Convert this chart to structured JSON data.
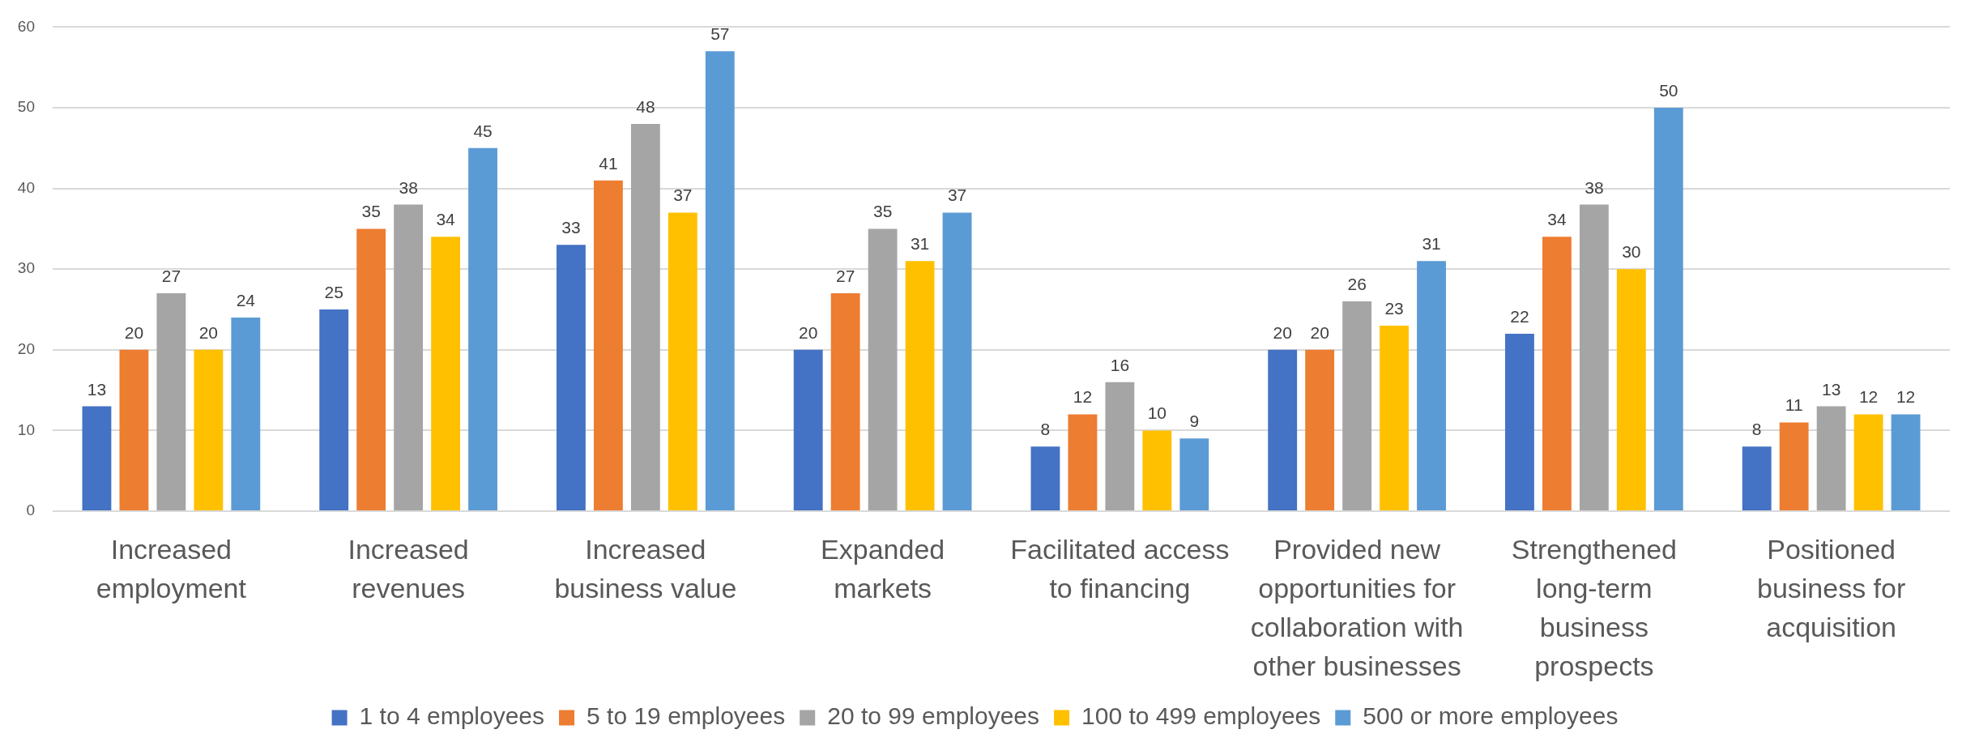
{
  "chart_data": {
    "type": "bar",
    "categories": [
      "Increased employment",
      "Increased revenues",
      "Increased business value",
      "Expanded markets",
      "Facilitated access to financing",
      "Provided new opportunities for collaboration with other businesses",
      "Strengthened long-term business prospects",
      "Positioned business for acquisition"
    ],
    "series": [
      {
        "name": "1 to 4 employees",
        "color": "#4472c4",
        "values": [
          13,
          25,
          33,
          20,
          8,
          20,
          22,
          8
        ]
      },
      {
        "name": "5 to 19 employees",
        "color": "#ed7d31",
        "values": [
          20,
          35,
          41,
          27,
          12,
          20,
          34,
          11
        ]
      },
      {
        "name": "20 to 99 employees",
        "color": "#a5a5a5",
        "values": [
          27,
          38,
          48,
          35,
          16,
          26,
          38,
          13
        ]
      },
      {
        "name": "100 to 499 employees",
        "color": "#ffc000",
        "values": [
          20,
          34,
          37,
          31,
          10,
          23,
          30,
          12
        ]
      },
      {
        "name": "500 or more employees",
        "color": "#5b9bd5",
        "values": [
          24,
          45,
          57,
          37,
          9,
          31,
          50,
          12
        ]
      }
    ],
    "ylim": [
      0,
      60
    ],
    "yticks": [
      0,
      10,
      20,
      30,
      40,
      50,
      60
    ],
    "grid": "y",
    "legend": "bottom",
    "data_labels": true
  }
}
